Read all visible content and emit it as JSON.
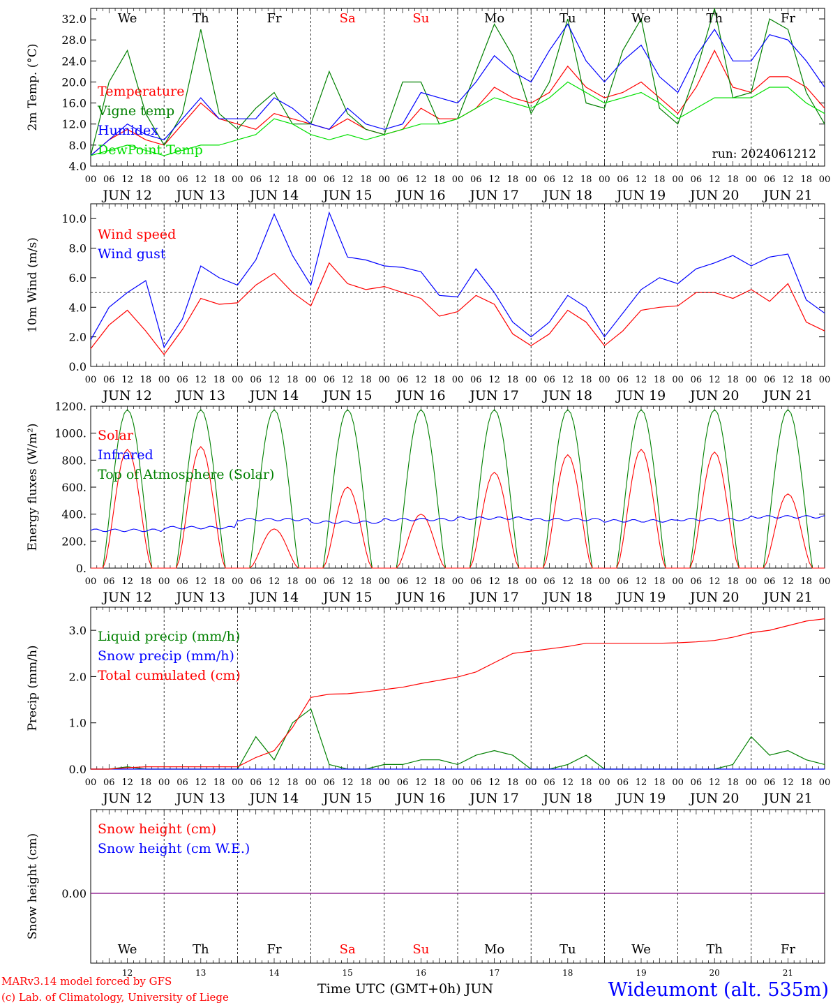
{
  "days": [
    "We",
    "Th",
    "Fr",
    "Sa",
    "Su",
    "Mo",
    "Tu",
    "We",
    "Th",
    "Fr"
  ],
  "weekend_days": [
    "Sa",
    "Su"
  ],
  "date_labels": [
    "JUN 12",
    "JUN 13",
    "JUN 14",
    "JUN 15",
    "JUN 16",
    "JUN 17",
    "JUN 18",
    "JUN 19",
    "JUN 20",
    "JUN 21"
  ],
  "bottom_day_numbers": [
    "12",
    "13",
    "14",
    "15",
    "16",
    "17",
    "18",
    "19",
    "20",
    "21"
  ],
  "hour_labels": [
    "00",
    "06",
    "12",
    "18"
  ],
  "run_label": "run: 2024061212",
  "footer": {
    "model": "MARv3.14 model forced by GFS",
    "credit": "(c) Lab. of Climatology, University of Liege",
    "xlabel": "Time UTC (GMT+0h) JUN",
    "station": "Wideumont (alt. 535m)"
  },
  "colors": {
    "red": "#ff0000",
    "blue": "#0000ff",
    "green": "#008000",
    "light_green": "#00e000",
    "purple": "#800080",
    "weekend": "#ff0000"
  },
  "chart_data": [
    {
      "type": "line",
      "ylabel": "2m Temp. (°C)",
      "ylim": [
        4.0,
        34.0
      ],
      "yticks": [
        "4.0",
        "8.0",
        "12.0",
        "16.0",
        "20.0",
        "24.0",
        "28.0",
        "32.0"
      ],
      "x_unit": "hours since JUN 12 00 UTC",
      "x": [
        0,
        6,
        12,
        18,
        24,
        30,
        36,
        42,
        48,
        54,
        60,
        66,
        72,
        78,
        84,
        90,
        96,
        102,
        108,
        114,
        120,
        126,
        132,
        138,
        144,
        150,
        156,
        162,
        168,
        174,
        180,
        186,
        192,
        198,
        204,
        210,
        216,
        222,
        228,
        234,
        240
      ],
      "series": [
        {
          "name": "Temperature",
          "color": "#ff0000",
          "values": [
            6,
            9,
            11,
            9,
            8,
            12,
            16,
            13,
            12,
            11,
            14,
            13,
            12,
            11,
            13,
            11,
            10,
            11,
            15,
            13,
            13,
            15,
            19,
            17,
            16,
            18,
            23,
            19,
            17,
            18,
            20,
            17,
            14,
            19,
            26,
            19,
            18,
            21,
            21,
            19,
            15
          ]
        },
        {
          "name": "Vigne temp",
          "color": "#008000",
          "values": [
            6,
            20,
            26,
            14,
            8,
            14,
            30,
            14,
            11,
            15,
            18,
            12,
            12,
            22,
            14,
            11,
            10,
            20,
            20,
            12,
            13,
            22,
            31,
            25,
            14,
            20,
            32,
            16,
            15,
            26,
            32,
            15,
            12,
            22,
            34,
            17,
            18,
            32,
            30,
            18,
            12
          ]
        },
        {
          "name": "Humidex",
          "color": "#0000ff",
          "values": [
            6,
            9,
            12,
            10,
            9,
            13,
            17,
            13,
            13,
            13,
            17,
            15,
            12,
            11,
            15,
            12,
            11,
            12,
            18,
            17,
            16,
            20,
            25,
            22,
            20,
            26,
            31,
            24,
            20,
            24,
            27,
            21,
            18,
            25,
            30,
            24,
            24,
            29,
            28,
            24,
            19
          ]
        },
        {
          "name": "DewPoint Temp",
          "color": "#00e000",
          "values": [
            6,
            7,
            8,
            7,
            6,
            7,
            8,
            8,
            9,
            10,
            13,
            12,
            10,
            9,
            10,
            9,
            10,
            11,
            12,
            12,
            13,
            15,
            17,
            16,
            15,
            17,
            20,
            18,
            16,
            17,
            18,
            16,
            13,
            15,
            17,
            17,
            17,
            19,
            19,
            16,
            14
          ]
        }
      ]
    },
    {
      "type": "line",
      "ylabel": "10m Wind (m/s)",
      "ylim": [
        0,
        11.0
      ],
      "yticks": [
        "0.0",
        "2.0",
        "4.0",
        "6.0",
        "8.0",
        "10.0"
      ],
      "ref_line": 5.0,
      "x": [
        0,
        6,
        12,
        18,
        24,
        30,
        36,
        42,
        48,
        54,
        60,
        66,
        72,
        78,
        84,
        90,
        96,
        102,
        108,
        114,
        120,
        126,
        132,
        138,
        144,
        150,
        156,
        162,
        168,
        174,
        180,
        186,
        192,
        198,
        204,
        210,
        216,
        222,
        228,
        234,
        240
      ],
      "series": [
        {
          "name": "Wind speed",
          "color": "#ff0000",
          "values": [
            1.2,
            2.8,
            3.8,
            2.4,
            0.8,
            2.5,
            4.6,
            4.2,
            4.3,
            5.5,
            6.3,
            5.0,
            4.1,
            7.0,
            5.6,
            5.2,
            5.4,
            5.0,
            4.6,
            3.4,
            3.7,
            4.8,
            4.2,
            2.2,
            1.4,
            2.2,
            3.8,
            3.0,
            1.4,
            2.4,
            3.8,
            4.0,
            4.1,
            5.0,
            5.0,
            4.6,
            5.2,
            4.4,
            5.6,
            3.0,
            2.4
          ]
        },
        {
          "name": "Wind gust",
          "color": "#0000ff",
          "values": [
            1.8,
            4.0,
            5.0,
            5.8,
            1.3,
            3.2,
            6.8,
            6.0,
            5.5,
            7.2,
            10.3,
            7.5,
            5.5,
            10.4,
            7.4,
            7.2,
            6.8,
            6.7,
            6.4,
            4.8,
            4.7,
            6.6,
            5.0,
            3.0,
            2.0,
            3.0,
            4.8,
            4.0,
            2.0,
            3.6,
            5.2,
            6.0,
            5.6,
            6.6,
            7.0,
            7.5,
            6.8,
            7.4,
            7.6,
            4.5,
            3.6
          ]
        }
      ]
    },
    {
      "type": "line",
      "ylabel": "Energy fluxes (W/m²)",
      "ylim": [
        0,
        1200
      ],
      "yticks": [
        "0.",
        "200.",
        "400.",
        "600.",
        "800.",
        "1000.",
        "1200."
      ],
      "solar_peaks": [
        880,
        900,
        290,
        600,
        400,
        710,
        840,
        880,
        860,
        550
      ],
      "infrared_mean": [
        280,
        300,
        360,
        340,
        360,
        370,
        360,
        350,
        360,
        380
      ],
      "toa_peak": 1175,
      "series": [
        {
          "name": "Solar",
          "color": "#ff0000"
        },
        {
          "name": "Infrared",
          "color": "#0000ff"
        },
        {
          "name": "Top of Atmosphere (Solar)",
          "color": "#008000"
        }
      ]
    },
    {
      "type": "line",
      "ylabel": "Precip (mm/h)",
      "ylim": [
        0,
        3.5
      ],
      "yticks": [
        "0.0",
        "1.0",
        "2.0",
        "3.0"
      ],
      "x": [
        0,
        6,
        12,
        18,
        24,
        30,
        36,
        42,
        48,
        54,
        60,
        66,
        72,
        78,
        84,
        90,
        96,
        102,
        108,
        114,
        120,
        126,
        132,
        138,
        144,
        150,
        156,
        162,
        168,
        174,
        180,
        186,
        192,
        198,
        204,
        210,
        216,
        222,
        228,
        234,
        240
      ],
      "series": [
        {
          "name": "Liquid precip (mm/h)",
          "color": "#008000",
          "values": [
            0,
            0,
            0.05,
            0,
            0,
            0,
            0,
            0,
            0,
            0.7,
            0.2,
            1.0,
            1.3,
            0.1,
            0,
            0,
            0.1,
            0.1,
            0.2,
            0.2,
            0.1,
            0.3,
            0.4,
            0.3,
            0,
            0,
            0.1,
            0.3,
            0,
            0,
            0,
            0,
            0,
            0,
            0,
            0.1,
            0.7,
            0.3,
            0.4,
            0.2,
            0.1
          ]
        },
        {
          "name": "Snow precip (mm/h)",
          "color": "#0000ff",
          "values": [
            0,
            0,
            0,
            0,
            0,
            0,
            0,
            0,
            0,
            0,
            0,
            0,
            0,
            0,
            0,
            0,
            0,
            0,
            0,
            0,
            0,
            0,
            0,
            0,
            0,
            0,
            0,
            0,
            0,
            0,
            0,
            0,
            0,
            0,
            0,
            0,
            0,
            0,
            0,
            0,
            0
          ]
        },
        {
          "name": "Total cumulated (cm)",
          "color": "#ff0000",
          "values": [
            0,
            0,
            0.03,
            0.05,
            0.05,
            0.05,
            0.05,
            0.05,
            0.05,
            0.25,
            0.4,
            0.9,
            1.55,
            1.62,
            1.63,
            1.67,
            1.72,
            1.77,
            1.85,
            1.92,
            1.99,
            2.1,
            2.3,
            2.5,
            2.55,
            2.6,
            2.65,
            2.72,
            2.72,
            2.72,
            2.72,
            2.72,
            2.73,
            2.75,
            2.78,
            2.85,
            2.95,
            3.0,
            3.1,
            3.2,
            3.25
          ]
        }
      ]
    },
    {
      "type": "line",
      "ylabel": "Snow height (cm)",
      "yticks": [
        "0.00"
      ],
      "series": [
        {
          "name": "Snow height (cm)",
          "color": "#ff0000"
        },
        {
          "name": "Snow height (cm W.E.)",
          "color": "#0000ff"
        }
      ]
    }
  ]
}
